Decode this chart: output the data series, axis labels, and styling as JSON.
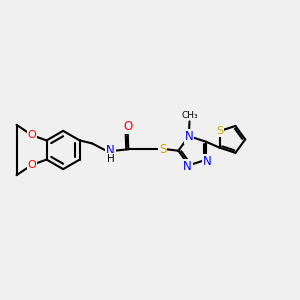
{
  "bg_color": "#f0f0f0",
  "bond_color": "#000000",
  "bond_width": 1.5,
  "atom_colors": {
    "O": "#ff0000",
    "N": "#0000ee",
    "S": "#ccaa00",
    "C": "#000000",
    "H": "#000000"
  },
  "font_size": 8.5,
  "fig_size": [
    3.0,
    3.0
  ],
  "dpi": 100,
  "xlim": [
    0,
    10
  ],
  "ylim": [
    2,
    8
  ]
}
